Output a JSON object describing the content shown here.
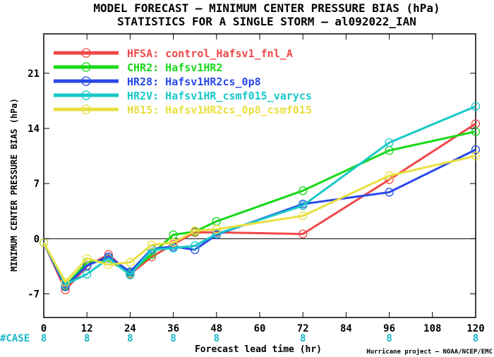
{
  "chart_data": {
    "type": "line",
    "title": "MODEL FORECAST – MINIMUM CENTER PRESSURE BIAS (hPa)",
    "subtitle": "STATISTICS FOR A SINGLE STORM – al092022_IAN",
    "xlabel": "Forecast lead time (hr)",
    "ylabel": "MINIMUM CENTER PRESSURE BIAS (hPa)",
    "credit": "Hurricane project – NOAA/NCEP/EMC",
    "xlim": [
      0,
      120
    ],
    "ylim": [
      -10,
      26
    ],
    "xticks": [
      0,
      12,
      24,
      36,
      48,
      60,
      72,
      84,
      96,
      108,
      120
    ],
    "yticks": [
      -7,
      0,
      7,
      14,
      21
    ],
    "grid": false,
    "legend_position": "top-left",
    "case_label": "#CASE",
    "case_counts": [
      {
        "x": 0,
        "n": "8"
      },
      {
        "x": 12,
        "n": "8"
      },
      {
        "x": 24,
        "n": "8"
      },
      {
        "x": 36,
        "n": "8"
      },
      {
        "x": 48,
        "n": "8"
      },
      {
        "x": 72,
        "n": "8"
      },
      {
        "x": 96,
        "n": "8"
      },
      {
        "x": 120,
        "n": "8"
      }
    ],
    "case_color": "#18b8c8",
    "series": [
      {
        "name": "HFSA: control_Hafsv1_fnl_A",
        "color": "#f04848",
        "x": [
          0,
          6,
          12,
          18,
          24,
          30,
          36,
          42,
          48,
          72,
          96,
          120
        ],
        "y": [
          -0.5,
          -6.5,
          -3.5,
          -2.0,
          -4.5,
          -2.3,
          -0.7,
          0.8,
          0.8,
          0.6,
          7.5,
          14.6
        ]
      },
      {
        "name": "CHR2: Hafsv1HR2",
        "color": "#18d818",
        "x": [
          0,
          6,
          12,
          18,
          24,
          30,
          36,
          42,
          48,
          72,
          96,
          120
        ],
        "y": [
          -0.5,
          -6.0,
          -3.0,
          -2.8,
          -4.3,
          -2.0,
          0.5,
          0.9,
          2.2,
          6.1,
          11.2,
          13.6
        ]
      },
      {
        "name": "HR28: Hafsv1HR2cs_0p8",
        "color": "#2848e8",
        "x": [
          0,
          6,
          12,
          18,
          24,
          30,
          36,
          42,
          48,
          72,
          96,
          120
        ],
        "y": [
          -0.5,
          -6.1,
          -3.4,
          -2.3,
          -4.2,
          -1.3,
          -1.0,
          -1.4,
          0.5,
          4.4,
          5.9,
          11.3
        ]
      },
      {
        "name": "HR2V: Hafsv1HR_csmf015_varycs",
        "color": "#18c8c8",
        "x": [
          0,
          6,
          12,
          18,
          24,
          30,
          36,
          42,
          48,
          72,
          96,
          120
        ],
        "y": [
          -0.5,
          -5.8,
          -4.5,
          -2.5,
          -4.6,
          -1.4,
          -1.2,
          -0.9,
          0.6,
          4.2,
          12.2,
          16.8
        ]
      },
      {
        "name": "H815: Hafsv1HR2cs_0p8_csmf015",
        "color": "#e8e040",
        "x": [
          0,
          6,
          12,
          18,
          24,
          30,
          36,
          42,
          48,
          72,
          96,
          120
        ],
        "y": [
          -0.5,
          -5.5,
          -2.5,
          -3.3,
          -3.0,
          -0.8,
          -0.5,
          1.0,
          1.2,
          2.9,
          8.0,
          10.5
        ]
      }
    ]
  }
}
